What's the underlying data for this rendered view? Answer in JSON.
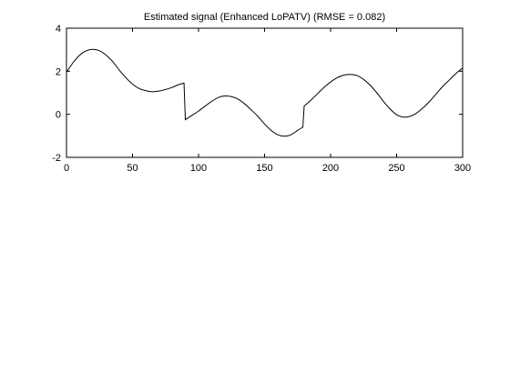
{
  "chart_data": {
    "type": "line",
    "title": "Estimated signal (Enhanced LoPATV) (RMSE = 0.082)",
    "xlabel": "",
    "ylabel": "",
    "xlim": [
      0,
      300
    ],
    "ylim": [
      -2,
      4
    ],
    "xticks": [
      0,
      50,
      100,
      150,
      200,
      250,
      300
    ],
    "yticks": [
      -2,
      0,
      2,
      4
    ],
    "grid": false,
    "line_color": "#000000",
    "series": [
      {
        "x": [
          0,
          5,
          10,
          15,
          20,
          25,
          30,
          35,
          40,
          45,
          50,
          55,
          60,
          65,
          70,
          75,
          80,
          85,
          89,
          90,
          95,
          100,
          105,
          110,
          115,
          120,
          125,
          130,
          135,
          140,
          145,
          150,
          155,
          160,
          165,
          170,
          175,
          179,
          180,
          185,
          190,
          195,
          200,
          205,
          210,
          215,
          220,
          225,
          230,
          235,
          240,
          245,
          250,
          255,
          260,
          265,
          270,
          275,
          280,
          285,
          290,
          295,
          300
        ],
        "values": [
          1.95,
          2.4,
          2.75,
          2.95,
          3.02,
          2.95,
          2.75,
          2.45,
          2.05,
          1.7,
          1.4,
          1.2,
          1.1,
          1.05,
          1.08,
          1.15,
          1.25,
          1.38,
          1.45,
          -0.25,
          -0.05,
          0.15,
          0.38,
          0.6,
          0.78,
          0.85,
          0.82,
          0.7,
          0.48,
          0.2,
          -0.1,
          -0.45,
          -0.75,
          -0.95,
          -1.02,
          -0.95,
          -0.75,
          -0.6,
          0.38,
          0.65,
          0.95,
          1.25,
          1.5,
          1.7,
          1.82,
          1.85,
          1.8,
          1.62,
          1.35,
          1.0,
          0.6,
          0.25,
          -0.02,
          -0.13,
          -0.1,
          0.05,
          0.3,
          0.6,
          0.95,
          1.3,
          1.6,
          1.9,
          2.15
        ]
      }
    ]
  }
}
